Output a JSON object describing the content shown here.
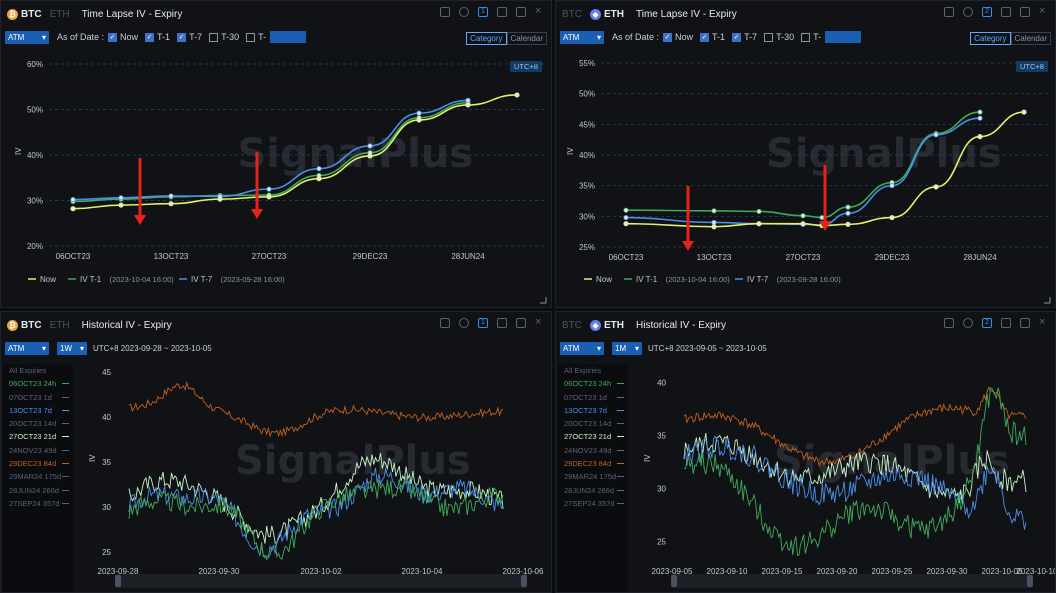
{
  "watermark": "SignalPlus",
  "colors": {
    "now": "#e3f06a",
    "t1": "#3faa5a",
    "t7": "#4a8ee6",
    "arrow": "#e5231b"
  },
  "panels": [
    {
      "coin_tabs": [
        "BTC",
        "ETH"
      ],
      "active_coin": "BTC",
      "title": "Time Lapse IV - Expiry",
      "badge": "1",
      "controls": {
        "atm": "ATM",
        "as_of": "As of Date :",
        "checks": [
          {
            "label": "Now",
            "on": true
          },
          {
            "label": "T-1",
            "on": true
          },
          {
            "label": "T-7",
            "on": true
          },
          {
            "label": "T-30",
            "on": false
          },
          {
            "label": "T-",
            "on": false
          }
        ],
        "mode_category": "Category",
        "mode_calendar": "Calendar"
      },
      "utc": "UTC+8",
      "legend": [
        {
          "name": "Now",
          "sub": ""
        },
        {
          "name": "IV T-1",
          "sub": "(2023-10-04 16:00)"
        },
        {
          "name": "IV T-7",
          "sub": "(2023-09-28 16:00)"
        }
      ]
    },
    {
      "coin_tabs": [
        "BTC",
        "ETH"
      ],
      "active_coin": "ETH",
      "title": "Time Lapse IV - Expiry",
      "badge": "2",
      "controls": {
        "atm": "ATM",
        "as_of": "As of Date :",
        "checks": [
          {
            "label": "Now",
            "on": true
          },
          {
            "label": "T-1",
            "on": true
          },
          {
            "label": "T-7",
            "on": true
          },
          {
            "label": "T-30",
            "on": false
          },
          {
            "label": "T-",
            "on": false
          }
        ],
        "mode_category": "Category",
        "mode_calendar": "Calendar"
      },
      "utc": "UTC+8",
      "legend": [
        {
          "name": "Now",
          "sub": ""
        },
        {
          "name": "IV T-1",
          "sub": "(2023-10-04 16:00)"
        },
        {
          "name": "IV T-7",
          "sub": "(2023-09-28 16:00)"
        }
      ]
    },
    {
      "coin_tabs": [
        "BTC",
        "ETH"
      ],
      "active_coin": "BTC",
      "title": "Historical IV - Expiry",
      "badge": "1",
      "controls": {
        "atm": "ATM",
        "window": "1W",
        "range": "UTC+8 2023-09-28 ~ 2023-10-05"
      },
      "expiries": [
        {
          "label": "All Expiries",
          "color": "#5b6270",
          "mark": false
        },
        {
          "label": "06OCT23 24h",
          "color": "#3faa5a",
          "mark": true
        },
        {
          "label": "07OCT23 1d",
          "color": "#5b6270",
          "mark": true
        },
        {
          "label": "13OCT23 7d",
          "color": "#4a8ee6",
          "mark": true
        },
        {
          "label": "20OCT23 14d",
          "color": "#5b6270",
          "mark": true
        },
        {
          "label": "27OCT23 21d",
          "color": "#c8f5c8",
          "mark": true
        },
        {
          "label": "24NOV23 49d",
          "color": "#5b6270",
          "mark": true
        },
        {
          "label": "29DEC23 84d",
          "color": "#c2601e",
          "mark": true
        },
        {
          "label": "29MAR24 175d",
          "color": "#5b6270",
          "mark": true
        },
        {
          "label": "28JUN24 266d",
          "color": "#5b6270",
          "mark": true
        },
        {
          "label": "27SEP24 357d",
          "color": "#5b6270",
          "mark": true
        }
      ]
    },
    {
      "coin_tabs": [
        "BTC",
        "ETH"
      ],
      "active_coin": "ETH",
      "title": "Historical IV - Expiry",
      "badge": "2",
      "controls": {
        "atm": "ATM",
        "window": "1M",
        "range": "UTC+8 2023-09-05 ~ 2023-10-05"
      },
      "expiries": [
        {
          "label": "All Expiries",
          "color": "#5b6270",
          "mark": false
        },
        {
          "label": "06OCT23 24h",
          "color": "#3faa5a",
          "mark": true
        },
        {
          "label": "07OCT23 1d",
          "color": "#5b6270",
          "mark": true
        },
        {
          "label": "13OCT23 7d",
          "color": "#4a8ee6",
          "mark": true
        },
        {
          "label": "20OCT23 14d",
          "color": "#5b6270",
          "mark": true
        },
        {
          "label": "27OCT23 21d",
          "color": "#c8f5c8",
          "mark": true
        },
        {
          "label": "24NOV23 49d",
          "color": "#5b6270",
          "mark": true
        },
        {
          "label": "29DEC23 84d",
          "color": "#c2601e",
          "mark": true
        },
        {
          "label": "29MAR24 175d",
          "color": "#5b6270",
          "mark": true
        },
        {
          "label": "28JUN24 266d",
          "color": "#5b6270",
          "mark": true
        },
        {
          "label": "27SEP24 357d",
          "color": "#5b6270",
          "mark": true
        }
      ]
    }
  ],
  "chart_data": [
    {
      "type": "line",
      "title": "",
      "xlabel": "",
      "ylabel": "IV",
      "y_tick_labels": [
        "20%",
        "30%",
        "40%",
        "50%",
        "60%"
      ],
      "ylim": [
        20,
        60
      ],
      "x_tick_labels": [
        "06OCT23",
        "13OCT23",
        "27OCT23",
        "29DEC23",
        "28JUN24"
      ],
      "x": [
        0,
        1,
        2,
        3,
        4,
        5,
        6,
        7,
        8,
        9,
        10
      ],
      "series": [
        {
          "name": "Now",
          "values": [
            28.2,
            null,
            29.3,
            30.3,
            30.8,
            34.8,
            39.8,
            47.7,
            51.0,
            53.2,
            null
          ]
        },
        {
          "name": "IV T-1",
          "values": [
            29.8,
            null,
            30.8,
            31.1,
            31.2,
            35.5,
            40.5,
            48.2,
            51.5,
            null,
            null
          ]
        },
        {
          "name": "IV T-7",
          "values": [
            30.2,
            null,
            31.0,
            30.9,
            32.5,
            37.0,
            42.0,
            49.2,
            52.0,
            null,
            null
          ]
        }
      ],
      "line_x": [
        0,
        2,
        3,
        4,
        5,
        6,
        7,
        8,
        9
      ],
      "point_x_now": [
        0,
        1,
        2,
        3,
        4,
        5,
        6,
        7,
        8,
        9
      ],
      "now_all": [
        28.2,
        29.0,
        29.3,
        30.3,
        30.8,
        34.8,
        39.8,
        47.7,
        51.0,
        53.2
      ],
      "t1_all": [
        29.8,
        30.3,
        30.8,
        31.1,
        31.2,
        35.5,
        40.5,
        48.2,
        51.5
      ],
      "t7_all": [
        30.2,
        30.6,
        31.0,
        30.9,
        32.5,
        37.0,
        42.0,
        49.2,
        52.0
      ]
    },
    {
      "type": "line",
      "title": "",
      "xlabel": "",
      "ylabel": "IV",
      "y_tick_labels": [
        "25%",
        "30%",
        "35%",
        "40%",
        "45%",
        "50%",
        "55%"
      ],
      "ylim": [
        25,
        55
      ],
      "x_tick_labels": [
        "06OCT23",
        "13OCT23",
        "27OCT23",
        "29DEC23",
        "28JUN24"
      ],
      "now_all": [
        28.8,
        28.3,
        28.8,
        28.8,
        28.5,
        28.7,
        29.8,
        34.8,
        43.0,
        47.0,
        48.3
      ],
      "t1_all": [
        31.0,
        30.9,
        30.8,
        30.1,
        29.8,
        31.5,
        35.5,
        43.5,
        47.0
      ],
      "t7_all": [
        29.8,
        29.0,
        28.8,
        28.7,
        28.6,
        30.5,
        35.0,
        43.3,
        46.0
      ]
    },
    {
      "type": "line",
      "title": "",
      "xlabel": "",
      "ylabel": "IV",
      "y_tick_labels": [
        "25",
        "30",
        "35",
        "40",
        "45"
      ],
      "ylim": [
        25,
        45
      ],
      "x_tick_labels": [
        "2023-09-28",
        "2023-09-30",
        "2023-10-02",
        "2023-10-04",
        "2023-10-06"
      ],
      "series": [
        {
          "name": "29DEC23 84d",
          "start": 41.0,
          "end": 40.0,
          "mean": 41.0
        },
        {
          "name": "27OCT23 21d",
          "start": 30.5,
          "end": 31.0,
          "mean": 31.0
        },
        {
          "name": "13OCT23 7d",
          "start": 29.5,
          "end": 29.0,
          "mean": 30.5
        },
        {
          "name": "06OCT23 24h",
          "start": 29.0,
          "end": 28.5,
          "mean": 30.0
        }
      ]
    },
    {
      "type": "line",
      "title": "",
      "xlabel": "",
      "ylabel": "IV",
      "y_tick_labels": [
        "25",
        "30",
        "35",
        "40"
      ],
      "ylim": [
        24,
        41
      ],
      "x_tick_labels": [
        "2023-09-05",
        "2023-09-10",
        "2023-09-15",
        "2023-09-20",
        "2023-09-25",
        "2023-09-30",
        "2023-10-05",
        "2023-10-10"
      ],
      "series": [
        {
          "name": "29DEC23 84d",
          "start": 37.0,
          "end": 35.0,
          "mean": 35.0
        },
        {
          "name": "27OCT23 21d",
          "start": 33.5,
          "end": 29.0,
          "mean": 30.0
        },
        {
          "name": "13OCT23 7d",
          "start": 33.0,
          "end": 30.0,
          "mean": 29.0
        },
        {
          "name": "06OCT23 24h",
          "start": 32.5,
          "end": 27.5,
          "mean": 29.0
        }
      ]
    }
  ]
}
